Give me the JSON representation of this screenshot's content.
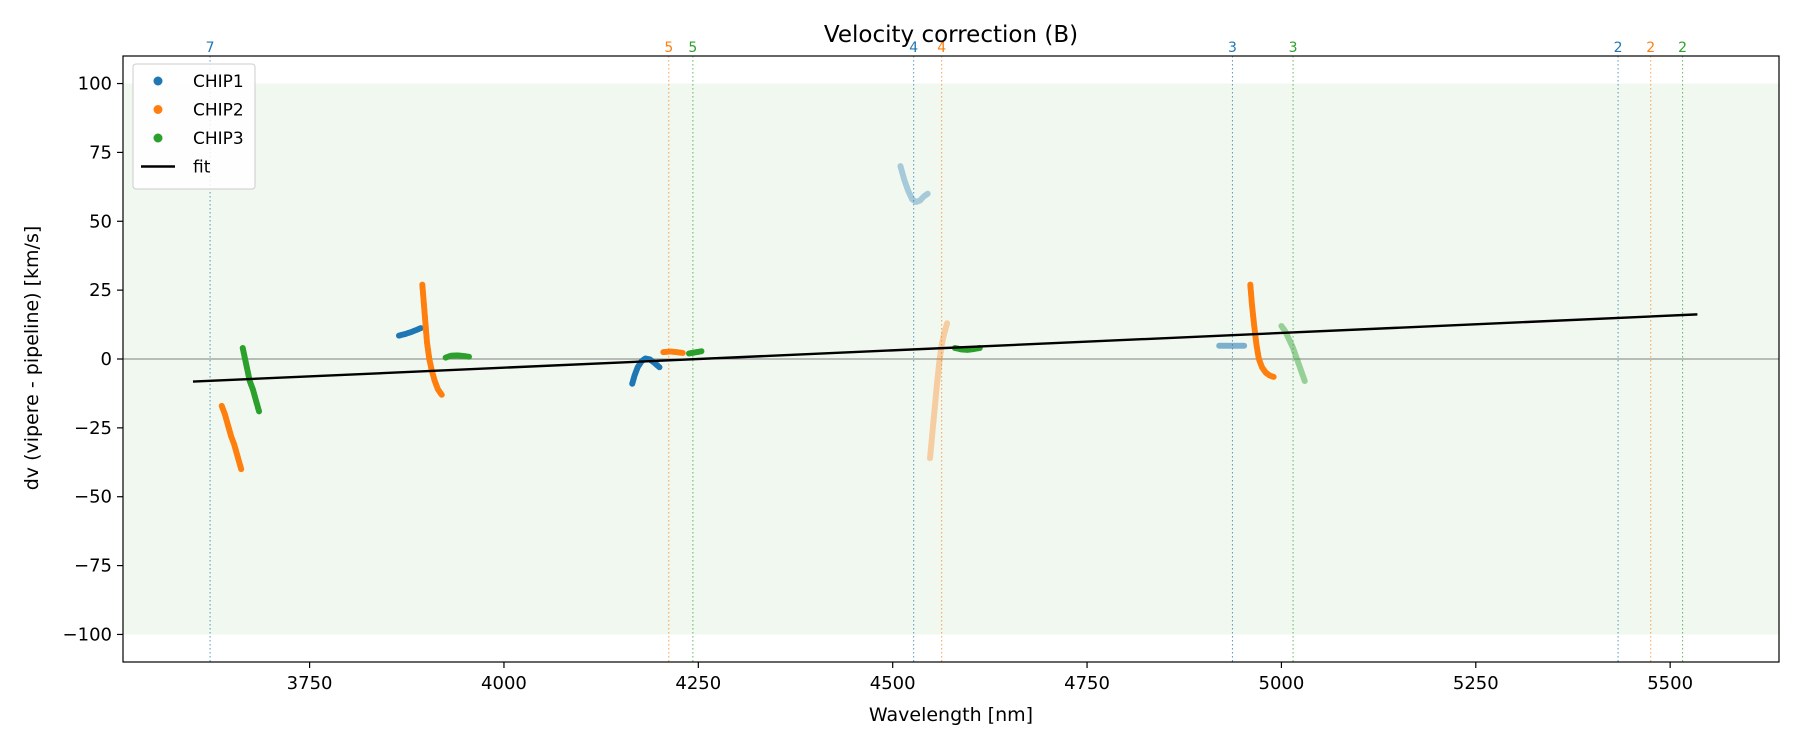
{
  "chart_data": {
    "type": "scatter",
    "title": "Velocity correction (B)",
    "xlabel": "Wavelength [nm]",
    "ylabel": "dv (vipere - pipeline) [km/s]",
    "xlim": [
      3510,
      5640
    ],
    "ylim": [
      -110,
      110
    ],
    "xticks": [
      3750,
      4000,
      4250,
      4500,
      4750,
      5000,
      5250,
      5500
    ],
    "yticks": [
      -100,
      -75,
      -50,
      -25,
      0,
      25,
      50,
      75,
      100
    ],
    "xtick_labels": [
      "3750",
      "4000",
      "4250",
      "4500",
      "4750",
      "5000",
      "5250",
      "5500"
    ],
    "ytick_labels": [
      "−100",
      "−75",
      "−50",
      "−25",
      "0",
      "25",
      "50",
      "75",
      "100"
    ],
    "band": {
      "y_min": -100,
      "y_max": 100,
      "color": "#2ca02c"
    },
    "zero_line": 0,
    "legend": {
      "placement": "upper-left",
      "entries": [
        {
          "label": "CHIP1",
          "kind": "point",
          "color": "#1f77b4"
        },
        {
          "label": "CHIP2",
          "kind": "point",
          "color": "#ff7f0e"
        },
        {
          "label": "CHIP3",
          "kind": "point",
          "color": "#2ca02c"
        },
        {
          "label": "fit",
          "kind": "line",
          "color": "#000000"
        }
      ]
    },
    "colors": {
      "CHIP1": "#1f77b4",
      "CHIP2": "#ff7f0e",
      "CHIP3": "#2ca02c"
    },
    "fit": {
      "name": "fit",
      "x": [
        3600,
        5535
      ],
      "y": [
        -8.2,
        16.2
      ]
    },
    "order_markers": [
      {
        "x": 3622,
        "label": "7",
        "chip": "CHIP1"
      },
      {
        "x": 4212,
        "label": "5",
        "chip": "CHIP2"
      },
      {
        "x": 4243,
        "label": "5",
        "chip": "CHIP3"
      },
      {
        "x": 4527,
        "label": "4",
        "chip": "CHIP1"
      },
      {
        "x": 4563,
        "label": "4",
        "chip": "CHIP2"
      },
      {
        "x": 4937,
        "label": "3",
        "chip": "CHIP1"
      },
      {
        "x": 5015,
        "label": "3",
        "chip": "CHIP3"
      },
      {
        "x": 5433,
        "label": "2",
        "chip": "CHIP1"
      },
      {
        "x": 5475,
        "label": "2",
        "chip": "CHIP2"
      },
      {
        "x": 5516,
        "label": "2",
        "chip": "CHIP3"
      }
    ],
    "series": [
      {
        "chip": "CHIP2",
        "alpha": 1,
        "points": [
          [
            3637,
            -17
          ],
          [
            3641,
            -20
          ],
          [
            3645,
            -24
          ],
          [
            3649,
            -28
          ],
          [
            3653,
            -31
          ],
          [
            3657,
            -35
          ],
          [
            3661,
            -39
          ],
          [
            3662,
            -40
          ]
        ]
      },
      {
        "chip": "CHIP3",
        "alpha": 1,
        "points": [
          [
            3664,
            4
          ],
          [
            3667,
            0
          ],
          [
            3670,
            -4
          ],
          [
            3673,
            -8
          ],
          [
            3677,
            -11
          ],
          [
            3681,
            -15
          ],
          [
            3685,
            -19
          ]
        ]
      },
      {
        "chip": "CHIP1",
        "alpha": 1,
        "points": [
          [
            3865,
            8.5
          ],
          [
            3872,
            9
          ],
          [
            3880,
            9.7
          ],
          [
            3887,
            10.5
          ],
          [
            3893,
            11.2
          ]
        ]
      },
      {
        "chip": "CHIP2",
        "alpha": 1,
        "points": [
          [
            3895,
            27
          ],
          [
            3897,
            20
          ],
          [
            3899,
            13
          ],
          [
            3901,
            6
          ],
          [
            3904,
            0
          ],
          [
            3907,
            -4
          ],
          [
            3911,
            -8
          ],
          [
            3915,
            -11
          ],
          [
            3920,
            -13
          ]
        ]
      },
      {
        "chip": "CHIP3",
        "alpha": 1,
        "points": [
          [
            3925,
            0.5
          ],
          [
            3932,
            1.2
          ],
          [
            3940,
            1.3
          ],
          [
            3948,
            1.1
          ],
          [
            3955,
            0.8
          ]
        ]
      },
      {
        "chip": "CHIP1",
        "alpha": 1,
        "points": [
          [
            4165,
            -9
          ],
          [
            4168,
            -6
          ],
          [
            4172,
            -3
          ],
          [
            4177,
            -0.8
          ],
          [
            4182,
            0.2
          ],
          [
            4188,
            -0.2
          ],
          [
            4194,
            -1.5
          ],
          [
            4200,
            -3
          ]
        ]
      },
      {
        "chip": "CHIP2",
        "alpha": 1,
        "points": [
          [
            4205,
            2.5
          ],
          [
            4214,
            2.7
          ],
          [
            4222,
            2.5
          ],
          [
            4230,
            2.2
          ]
        ]
      },
      {
        "chip": "CHIP3",
        "alpha": 1,
        "points": [
          [
            4238,
            2
          ],
          [
            4246,
            2.4
          ],
          [
            4254,
            2.8
          ]
        ]
      },
      {
        "chip": "CHIP1",
        "alpha": 0.35,
        "points": [
          [
            4510,
            70
          ],
          [
            4515,
            65
          ],
          [
            4520,
            61
          ],
          [
            4525,
            58
          ],
          [
            4530,
            57
          ],
          [
            4535,
            57.5
          ],
          [
            4540,
            59
          ],
          [
            4545,
            60
          ]
        ]
      },
      {
        "chip": "CHIP2",
        "alpha": 0.35,
        "points": [
          [
            4548,
            -36
          ],
          [
            4551,
            -27
          ],
          [
            4554,
            -18
          ],
          [
            4557,
            -9
          ],
          [
            4560,
            -1
          ],
          [
            4563,
            5
          ],
          [
            4566,
            9
          ],
          [
            4570,
            13
          ]
        ]
      },
      {
        "chip": "CHIP3",
        "alpha": 1,
        "points": [
          [
            4580,
            4
          ],
          [
            4588,
            3.5
          ],
          [
            4596,
            3.3
          ],
          [
            4604,
            3.6
          ],
          [
            4612,
            4
          ]
        ]
      },
      {
        "chip": "CHIP1",
        "alpha": 0.55,
        "points": [
          [
            4920,
            4.8
          ],
          [
            4928,
            4.8
          ],
          [
            4936,
            4.8
          ],
          [
            4944,
            4.8
          ],
          [
            4952,
            4.8
          ]
        ]
      },
      {
        "chip": "CHIP2",
        "alpha": 1,
        "points": [
          [
            4960,
            27
          ],
          [
            4962,
            20
          ],
          [
            4965,
            12
          ],
          [
            4968,
            5
          ],
          [
            4971,
            0
          ],
          [
            4975,
            -3
          ],
          [
            4980,
            -5
          ],
          [
            4985,
            -6
          ],
          [
            4990,
            -6.5
          ]
        ]
      },
      {
        "chip": "CHIP3",
        "alpha": 0.45,
        "points": [
          [
            5000,
            12
          ],
          [
            5005,
            10
          ],
          [
            5010,
            7
          ],
          [
            5015,
            4
          ],
          [
            5020,
            0
          ],
          [
            5025,
            -4
          ],
          [
            5030,
            -8
          ]
        ]
      }
    ]
  }
}
